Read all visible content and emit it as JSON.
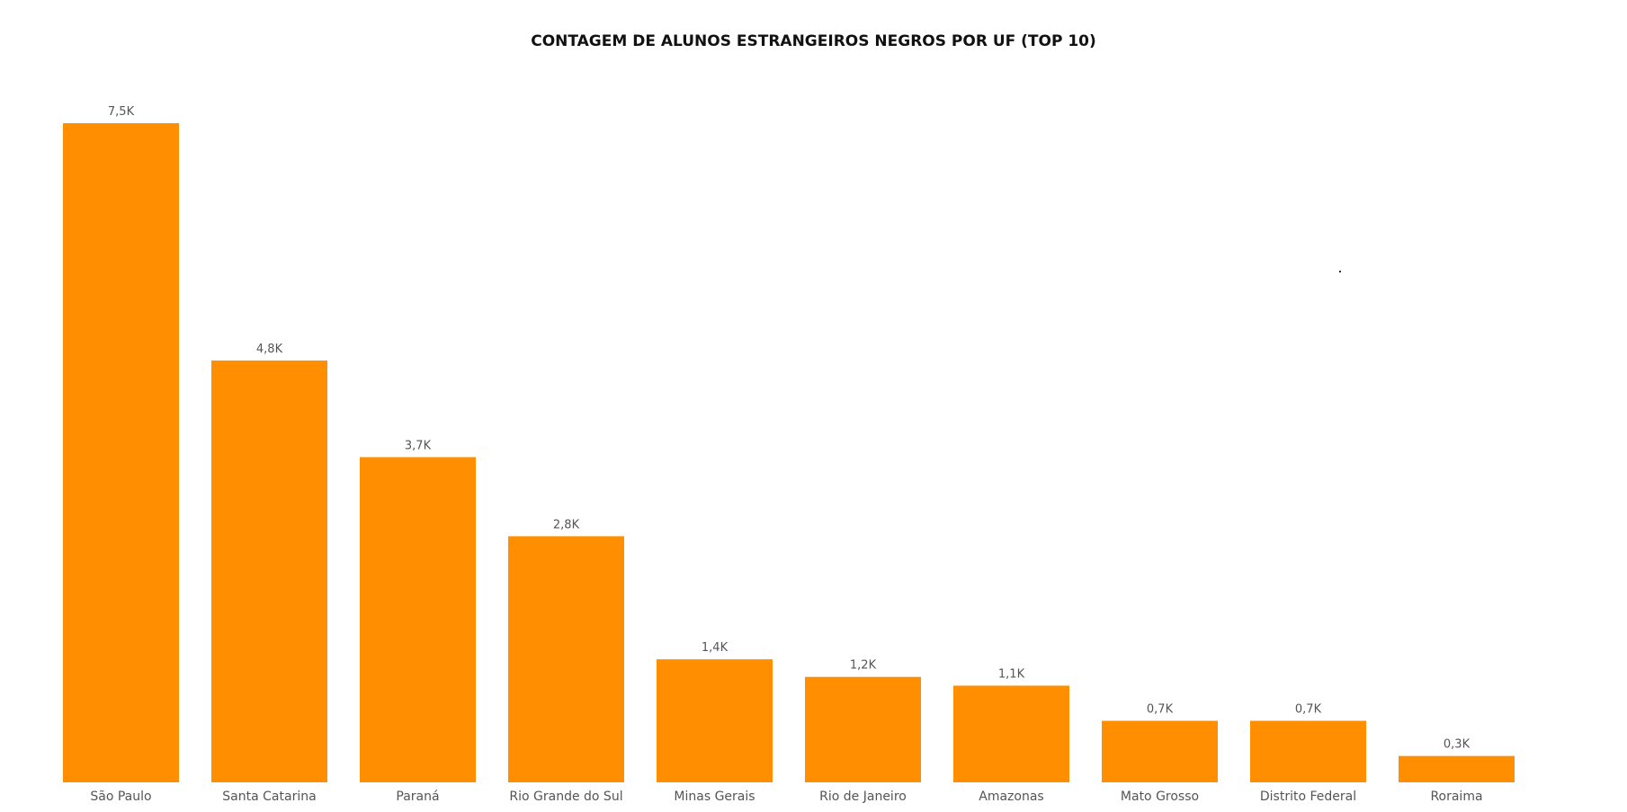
{
  "chart_data": {
    "type": "bar",
    "title": "CONTAGEM DE ALUNOS ESTRANGEIROS NEGROS POR UF (TOP 10)",
    "xlabel": "",
    "ylabel": "",
    "categories": [
      "São Paulo",
      "Santa Catarina",
      "Paraná",
      "Rio Grande do Sul",
      "Minas Gerais",
      "Rio de Janeiro",
      "Amazonas",
      "Mato Grosso",
      "Distrito Federal",
      "Roraima"
    ],
    "values": [
      7500,
      4800,
      3700,
      2800,
      1400,
      1200,
      1100,
      700,
      700,
      300
    ],
    "data_labels": [
      "7,5K",
      "4,8K",
      "3,7K",
      "2,8K",
      "1,4K",
      "1,2K",
      "1,1K",
      "0,7K",
      "0,7K",
      "0,3K"
    ],
    "ylim": [
      0,
      7500
    ],
    "grid": false,
    "legend": "none",
    "bar_color": "#FF8F00"
  }
}
